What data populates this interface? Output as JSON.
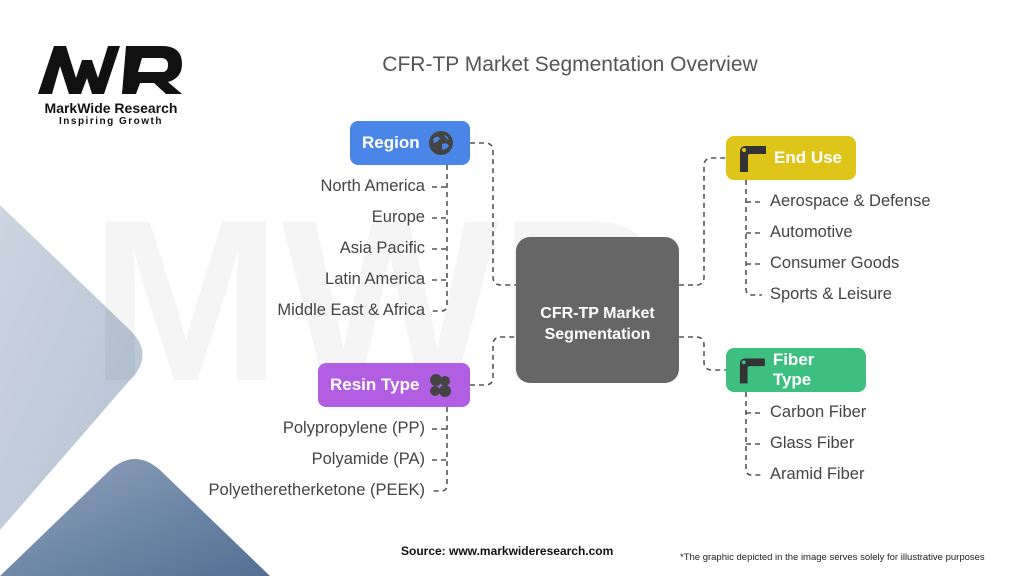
{
  "logo": {
    "mark": "MWR",
    "name": "MarkWide Research",
    "tagline": "Inspiring Growth"
  },
  "title": "CFR-TP Market Segmentation Overview",
  "center": "CFR-TP Market Segmentation",
  "colors": {
    "region": "#4a86e8",
    "end_use": "#dfc51a",
    "fiber_type": "#3cbf7f",
    "resin_type": "#b25ee3",
    "center": "#666666"
  },
  "segments": {
    "region": {
      "label": "Region",
      "icon": "globe-icon",
      "items": [
        "North America",
        "Europe",
        "Asia Pacific",
        "Latin America",
        "Middle East & Africa"
      ]
    },
    "resin_type": {
      "label": "Resin Type",
      "icon": "pellets-icon",
      "items": [
        "Polypropylene (PP)",
        "Polyamide (PA)",
        "Polyetheretherketone (PEEK)"
      ]
    },
    "end_use": {
      "label": "End Use",
      "icon": "pipe-corner-icon",
      "items": [
        "Aerospace & Defense",
        "Automotive",
        "Consumer Goods",
        "Sports & Leisure"
      ]
    },
    "fiber_type": {
      "label": "Fiber Type",
      "icon": "pipe-corner-icon",
      "items": [
        "Carbon Fiber",
        "Glass Fiber",
        "Aramid Fiber"
      ]
    }
  },
  "footer": {
    "source": "Source: www.markwideresearch.com",
    "note": "*The graphic depicted in the image serves solely for illustrative purposes"
  }
}
